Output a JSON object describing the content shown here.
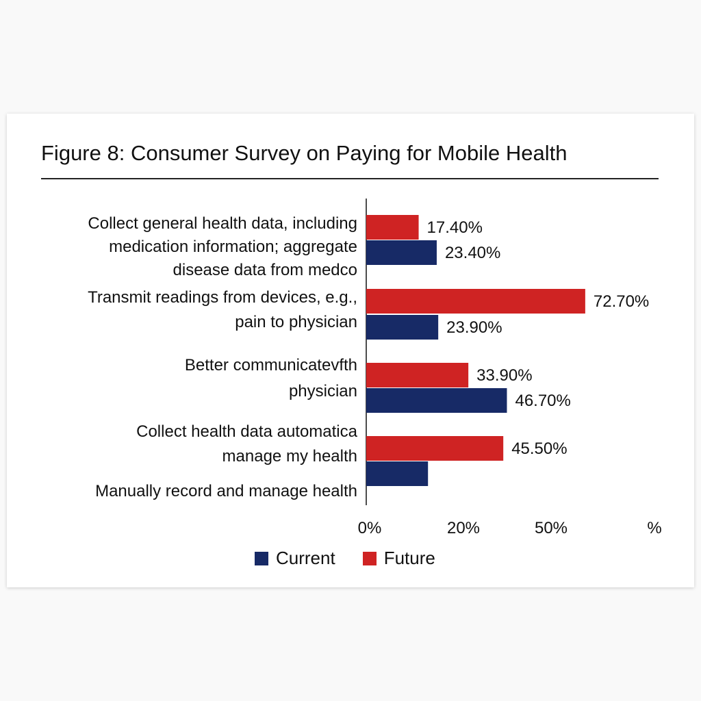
{
  "colors": {
    "current": "#172a66",
    "future": "#cf2323",
    "axis": "#111111"
  },
  "figure": {
    "title": "Figure 8: Consumer Survey on Paying for Mobile Health"
  },
  "chart_data": {
    "type": "bar",
    "orientation": "horizontal",
    "title": "Figure 8: Consumer Survey on Paying for Mobile Health",
    "categories": [
      [
        "Collect general health data, including",
        "medication information; aggregate",
        "disease data from medco"
      ],
      [
        "Transmit readings from devices, e.g.,",
        "pain to physician"
      ],
      [
        "Better communicatevfth",
        "physician"
      ],
      [
        "Collect health data automatica",
        "manage my health"
      ],
      [
        "Manually record and manage health"
      ]
    ],
    "series": [
      {
        "name": "Future",
        "values": [
          17.4,
          72.7,
          33.9,
          45.5,
          null
        ],
        "data_labels": [
          "17.40%",
          "72.70%",
          "33.90%",
          "45.50%",
          ""
        ]
      },
      {
        "name": "Current",
        "values": [
          23.4,
          23.9,
          46.7,
          20.5,
          null
        ],
        "data_labels": [
          "23.40%",
          "23.90%",
          "46.70%",
          "",
          ""
        ]
      }
    ],
    "x_ticks": [
      "0%",
      "20%",
      "50%",
      "%"
    ],
    "legend": [
      "Current",
      "Future"
    ],
    "legend_position": "bottom",
    "grid": false
  }
}
